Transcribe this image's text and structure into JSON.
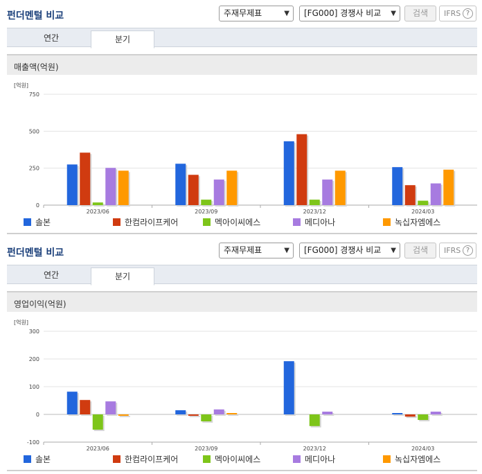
{
  "colors": {
    "series": [
      "#2266dd",
      "#d03b10",
      "#7ec51a",
      "#a77be0",
      "#ff9900"
    ],
    "grid": "#e3e3e3",
    "axis": "#aaaaaa"
  },
  "panels": [
    {
      "title": "펀더멘털 비교",
      "select_type": "주재무제표",
      "select_company": "[FG000] 경쟁사 비교",
      "search_label": "검색",
      "ifrs_label": "IFRS",
      "help_glyph": "?",
      "tabs": [
        "연간",
        "분기"
      ],
      "active_tab": "분기",
      "subtitle": "매출액(억원)",
      "unit": "[억원]"
    },
    {
      "title": "펀더멘털 비교",
      "select_type": "주재무제표",
      "select_company": "[FG000] 경쟁사 비교",
      "search_label": "검색",
      "ifrs_label": "IFRS",
      "help_glyph": "?",
      "tabs": [
        "연간",
        "분기"
      ],
      "active_tab": "분기",
      "subtitle": "영업이익(억원)",
      "unit": "[억원]"
    }
  ],
  "chart_data": [
    {
      "type": "bar",
      "title": "매출액(억원)",
      "ylabel": "[억원]",
      "categories": [
        "2023/06",
        "2023/09",
        "2023/12",
        "2024/03"
      ],
      "ylim": [
        0,
        750
      ],
      "yticks": [
        0,
        250,
        500,
        750
      ],
      "grid": true,
      "legend": "bottom",
      "series": [
        {
          "name": "솔본",
          "values": [
            275,
            280,
            432,
            257
          ]
        },
        {
          "name": "한컴라이프케어",
          "values": [
            355,
            205,
            480,
            135
          ]
        },
        {
          "name": "멕아이씨에스",
          "values": [
            18,
            37,
            37,
            30
          ]
        },
        {
          "name": "메디아나",
          "values": [
            252,
            173,
            173,
            147
          ]
        },
        {
          "name": "녹십자엠에스",
          "values": [
            233,
            233,
            233,
            240
          ]
        }
      ]
    },
    {
      "type": "bar",
      "title": "영업이익(억원)",
      "ylabel": "[억원]",
      "categories": [
        "2023/06",
        "2023/09",
        "2023/12",
        "2024/03"
      ],
      "ylim": [
        -100,
        300
      ],
      "yticks": [
        -100,
        0,
        100,
        200,
        300
      ],
      "grid": true,
      "legend": "bottom",
      "series": [
        {
          "name": "솔본",
          "values": [
            82,
            15,
            192,
            5
          ]
        },
        {
          "name": "한컴라이프케어",
          "values": [
            52,
            -5,
            0,
            -8
          ]
        },
        {
          "name": "멕아이씨에스",
          "values": [
            -55,
            -25,
            -42,
            -20
          ]
        },
        {
          "name": "메디아나",
          "values": [
            47,
            18,
            10,
            10
          ]
        },
        {
          "name": "녹십자엠에스",
          "values": [
            -5,
            5,
            0,
            0
          ]
        }
      ]
    }
  ]
}
